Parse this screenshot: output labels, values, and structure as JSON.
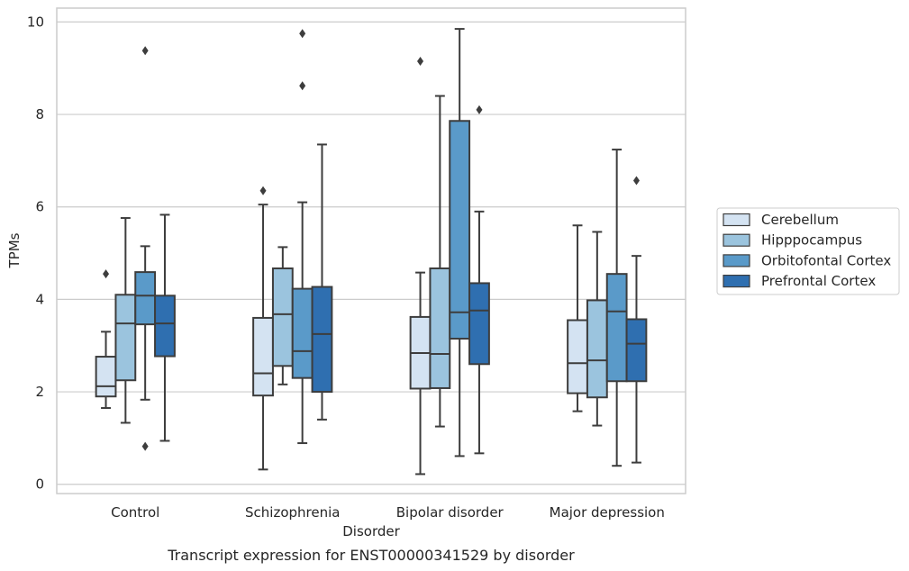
{
  "chart_data": {
    "type": "box",
    "caption": "Transcript expression for ENST00000341529 by disorder",
    "xlabel": "Disorder",
    "ylabel": "TPMs",
    "ylim": [
      -0.2,
      10.3
    ],
    "yticks": [
      0,
      2,
      4,
      6,
      8,
      10
    ],
    "grid": "horizontal",
    "legend_position": "right",
    "categories": [
      "Control",
      "Schizophrenia",
      "Bipolar disorder",
      "Major depression"
    ],
    "series": [
      {
        "name": "Cerebellum",
        "color": "#d4e3f2",
        "boxes": [
          {
            "whisker_low": 1.65,
            "q1": 1.9,
            "median": 2.12,
            "q3": 2.76,
            "whisker_high": 3.3,
            "outliers": [
              4.55
            ]
          },
          {
            "whisker_low": 0.32,
            "q1": 1.92,
            "median": 2.4,
            "q3": 3.6,
            "whisker_high": 6.05,
            "outliers": [
              6.35
            ]
          },
          {
            "whisker_low": 0.22,
            "q1": 2.07,
            "median": 2.84,
            "q3": 3.62,
            "whisker_high": 4.58,
            "outliers": [
              9.15
            ]
          },
          {
            "whisker_low": 1.58,
            "q1": 1.97,
            "median": 2.62,
            "q3": 3.55,
            "whisker_high": 5.6,
            "outliers": []
          }
        ]
      },
      {
        "name": "Hipppocampus",
        "color": "#9bc4de",
        "boxes": [
          {
            "whisker_low": 1.33,
            "q1": 2.25,
            "median": 3.48,
            "q3": 4.1,
            "whisker_high": 5.76,
            "outliers": []
          },
          {
            "whisker_low": 2.16,
            "q1": 2.56,
            "median": 3.68,
            "q3": 4.67,
            "whisker_high": 5.13,
            "outliers": []
          },
          {
            "whisker_low": 1.25,
            "q1": 2.08,
            "median": 2.82,
            "q3": 4.67,
            "whisker_high": 8.4,
            "outliers": []
          },
          {
            "whisker_low": 1.27,
            "q1": 1.88,
            "median": 2.68,
            "q3": 3.98,
            "whisker_high": 5.46,
            "outliers": []
          }
        ]
      },
      {
        "name": "Orbitofontal Cortex",
        "color": "#5a9ac9",
        "boxes": [
          {
            "whisker_low": 1.83,
            "q1": 3.46,
            "median": 4.08,
            "q3": 4.59,
            "whisker_high": 5.15,
            "outliers": [
              9.38,
              0.82
            ]
          },
          {
            "whisker_low": 0.89,
            "q1": 2.3,
            "median": 2.88,
            "q3": 4.23,
            "whisker_high": 6.1,
            "outliers": [
              9.75,
              8.62
            ]
          },
          {
            "whisker_low": 0.61,
            "q1": 3.15,
            "median": 3.72,
            "q3": 7.86,
            "whisker_high": 9.85,
            "outliers": []
          },
          {
            "whisker_low": 0.4,
            "q1": 2.23,
            "median": 3.74,
            "q3": 4.55,
            "whisker_high": 7.24,
            "outliers": []
          }
        ]
      },
      {
        "name": "Prefrontal Cortex",
        "color": "#2f6fb0",
        "boxes": [
          {
            "whisker_low": 0.94,
            "q1": 2.77,
            "median": 3.48,
            "q3": 4.08,
            "whisker_high": 5.83,
            "outliers": []
          },
          {
            "whisker_low": 1.4,
            "q1": 2.0,
            "median": 3.25,
            "q3": 4.27,
            "whisker_high": 7.35,
            "outliers": []
          },
          {
            "whisker_low": 0.67,
            "q1": 2.6,
            "median": 3.76,
            "q3": 4.35,
            "whisker_high": 5.9,
            "outliers": [
              8.1
            ]
          },
          {
            "whisker_low": 0.47,
            "q1": 2.23,
            "median": 3.04,
            "q3": 3.57,
            "whisker_high": 4.94,
            "outliers": [
              6.57
            ]
          }
        ]
      }
    ]
  }
}
